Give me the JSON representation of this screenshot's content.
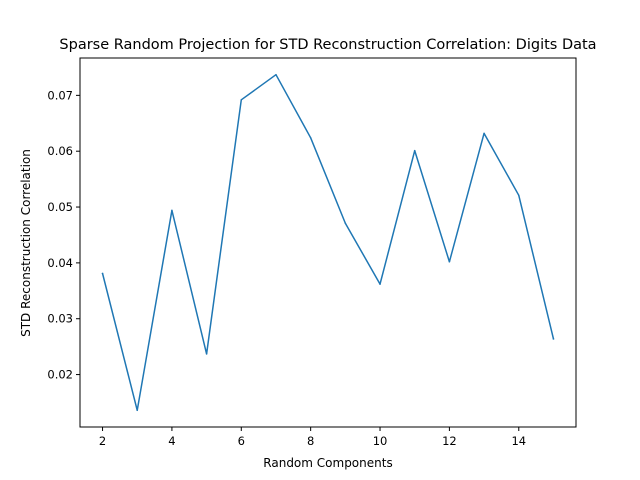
{
  "chart_data": {
    "type": "line",
    "title": "Sparse Random Projection for STD Reconstruction Correlation: Digits Data",
    "xlabel": "Random Components",
    "ylabel": "STD Reconstruction Correlation",
    "x": [
      2,
      3,
      4,
      5,
      6,
      7,
      8,
      9,
      10,
      11,
      12,
      13,
      14,
      15
    ],
    "series": [
      {
        "color": "#1f77b4",
        "values": [
          0.0381,
          0.0136,
          0.0494,
          0.0237,
          0.0692,
          0.0737,
          0.0624,
          0.0471,
          0.0362,
          0.0601,
          0.0402,
          0.0632,
          0.0521,
          0.0264
        ]
      }
    ],
    "xlim": [
      1.35,
      15.65
    ],
    "ylim": [
      0.01061,
      0.07669
    ],
    "xticks": [
      2,
      4,
      6,
      8,
      10,
      12,
      14
    ],
    "yticks": [
      0.02,
      0.03,
      0.04,
      0.05,
      0.06,
      0.07
    ],
    "ytick_labels": [
      "0.02",
      "0.03",
      "0.04",
      "0.05",
      "0.06",
      "0.07"
    ],
    "grid": false,
    "legend": "none"
  }
}
